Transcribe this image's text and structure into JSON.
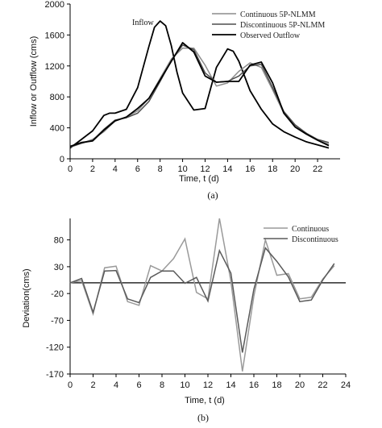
{
  "chart_data": [
    {
      "type": "line",
      "caption": "(a)",
      "xlabel": "Time, t (d)",
      "ylabel": "Inflow or Outflow (cms)",
      "xlim": [
        0,
        24
      ],
      "ylim": [
        0,
        2000
      ],
      "x_ticks": [
        "0",
        "2",
        "4",
        "6",
        "8",
        "10",
        "12",
        "14",
        "16",
        "18",
        "20",
        "22"
      ],
      "y_ticks": [
        "0",
        "400",
        "800",
        "1200",
        "1600",
        "2000"
      ],
      "annotation": "Inflow",
      "legend_position": "top-right",
      "inflow": {
        "x": [
          0,
          1,
          2,
          3,
          3.5,
          4,
          5,
          6,
          7,
          7.5,
          8,
          8.5,
          9,
          9.5,
          10,
          11,
          12,
          13,
          14,
          14.5,
          15,
          16,
          17,
          18,
          19,
          20,
          21,
          22,
          23
        ],
        "values": [
          140,
          250,
          360,
          560,
          590,
          590,
          640,
          920,
          1450,
          1700,
          1780,
          1720,
          1460,
          1120,
          850,
          630,
          650,
          1180,
          1420,
          1390,
          1260,
          880,
          640,
          450,
          350,
          280,
          220,
          180,
          140
        ]
      },
      "series": [
        {
          "name": "Continuous 5P-NLMM",
          "color": "#8c8c8c",
          "x": [
            0,
            1,
            2,
            3,
            4,
            5,
            6,
            7,
            8,
            9,
            10,
            11,
            12,
            13,
            14,
            15,
            16,
            17,
            18,
            19,
            20,
            21,
            22,
            23
          ],
          "values": [
            150,
            200,
            250,
            350,
            490,
            540,
            620,
            780,
            1040,
            1290,
            1430,
            1430,
            1210,
            940,
            980,
            1130,
            1240,
            1180,
            890,
            590,
            430,
            330,
            240,
            190
          ]
        },
        {
          "name": "Discontinuous 5P-NLMM",
          "color": "#4d4d4d",
          "x": [
            0,
            1,
            2,
            3,
            4,
            5,
            6,
            7,
            8,
            9,
            10,
            11,
            12,
            13,
            14,
            15,
            16,
            17,
            18,
            19,
            20,
            21,
            22,
            23
          ],
          "values": [
            150,
            200,
            240,
            380,
            500,
            530,
            590,
            740,
            1000,
            1270,
            1470,
            1410,
            1110,
            990,
            1000,
            1070,
            1200,
            1220,
            920,
            610,
            440,
            330,
            250,
            210
          ]
        },
        {
          "name": "Observed Outflow",
          "color": "#000000",
          "x": [
            0,
            1,
            2,
            3,
            4,
            5,
            6,
            7,
            8,
            9,
            10,
            11,
            12,
            13,
            14,
            15,
            16,
            17,
            18,
            19,
            20,
            21,
            22,
            23
          ],
          "values": [
            160,
            210,
            230,
            370,
            490,
            540,
            650,
            780,
            1020,
            1260,
            1500,
            1380,
            1070,
            990,
            1000,
            1000,
            1210,
            1250,
            980,
            590,
            410,
            320,
            240,
            170
          ]
        }
      ]
    },
    {
      "type": "line",
      "caption": "(b)",
      "xlabel": "Time, t (d)",
      "ylabel": "Deviation(cms)",
      "xlim": [
        0,
        24
      ],
      "ylim": [
        -170,
        120
      ],
      "x_ticks": [
        "0",
        "2",
        "4",
        "6",
        "8",
        "10",
        "12",
        "14",
        "16",
        "18",
        "20",
        "22",
        "24"
      ],
      "y_ticks": [
        "80",
        "30",
        "-20",
        "-70",
        "-120",
        "-170"
      ],
      "legend_position": "top-right",
      "series": [
        {
          "name": "Continuous",
          "color": "#9a9a9a",
          "x": [
            0,
            1,
            2,
            3,
            4,
            5,
            6,
            7,
            8,
            9,
            10,
            11,
            12,
            13,
            14,
            15,
            16,
            17,
            18,
            19,
            20,
            21,
            22,
            23
          ],
          "values": [
            0,
            4,
            -58,
            28,
            31,
            -35,
            -42,
            32,
            22,
            45,
            82,
            -18,
            -30,
            120,
            3,
            -165,
            -25,
            80,
            14,
            17,
            -30,
            -27,
            7,
            32
          ]
        },
        {
          "name": "Discontinuous",
          "color": "#5a5a5a",
          "x": [
            0,
            1,
            2,
            3,
            4,
            5,
            6,
            7,
            8,
            9,
            10,
            11,
            12,
            13,
            14,
            15,
            16,
            17,
            18,
            19,
            20,
            21,
            22,
            23
          ],
          "values": [
            0,
            8,
            -55,
            22,
            23,
            -30,
            -37,
            10,
            22,
            22,
            -1,
            10,
            -34,
            60,
            18,
            -130,
            -12,
            65,
            40,
            11,
            -35,
            -32,
            5,
            36
          ]
        }
      ]
    }
  ]
}
